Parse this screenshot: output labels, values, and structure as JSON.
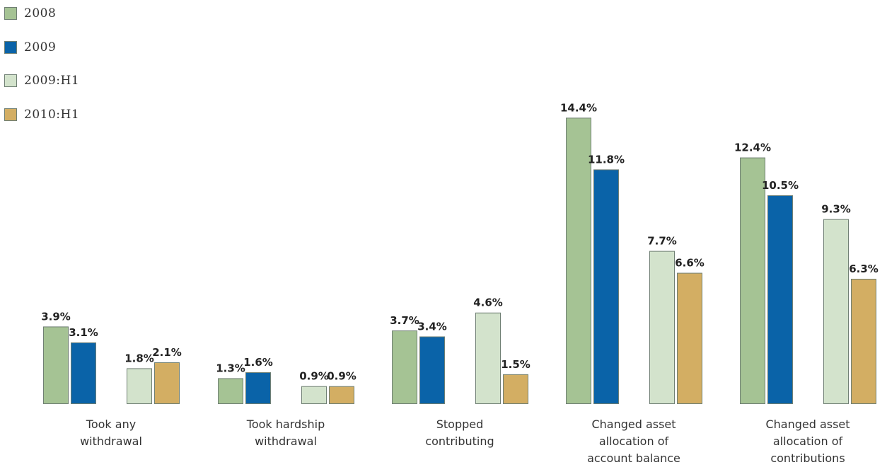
{
  "legend": [
    {
      "label": "2008",
      "color": "#a5c394"
    },
    {
      "label": "2009",
      "color": "#0a63a8"
    },
    {
      "label": "2009:H1",
      "color": "#d3e3cc"
    },
    {
      "label": "2010:H1",
      "color": "#d3ae63"
    }
  ],
  "chart_data": {
    "type": "bar",
    "title": "",
    "xlabel": "",
    "ylabel": "",
    "categories": [
      [
        "Took any",
        "withdrawal"
      ],
      [
        "Took hardship",
        "withdrawal"
      ],
      [
        "Stopped",
        "contributing"
      ],
      [
        "Changed asset",
        "allocation of",
        "account balance"
      ],
      [
        "Changed asset",
        "allocation of",
        "contributions"
      ]
    ],
    "series": [
      {
        "name": "2008",
        "color": "#a5c394",
        "values": [
          3.9,
          1.3,
          3.7,
          14.4,
          12.4
        ],
        "labels": [
          "3.9%",
          "1.3%",
          "3.7%",
          "14.4%",
          "12.4%"
        ]
      },
      {
        "name": "2009",
        "color": "#0a63a8",
        "values": [
          3.1,
          1.6,
          3.4,
          11.8,
          10.5
        ],
        "labels": [
          "3.1%",
          "1.6%",
          "3.4%",
          "11.8%",
          "10.5%"
        ]
      },
      {
        "name": "2009:H1",
        "color": "#d3e3cc",
        "values": [
          1.8,
          0.9,
          4.6,
          7.7,
          9.3
        ],
        "labels": [
          "1.8%",
          "0.9%",
          "4.6%",
          "7.7%",
          "9.3%"
        ]
      },
      {
        "name": "2010:H1",
        "color": "#d3ae63",
        "values": [
          2.1,
          0.9,
          1.5,
          6.6,
          6.3
        ],
        "labels": [
          "2.1%",
          "0.9%",
          "1.5%",
          "6.6%",
          "6.3%"
        ]
      }
    ],
    "ylim": [
      0,
      15
    ],
    "grid": false,
    "legend_position": "top-left"
  }
}
